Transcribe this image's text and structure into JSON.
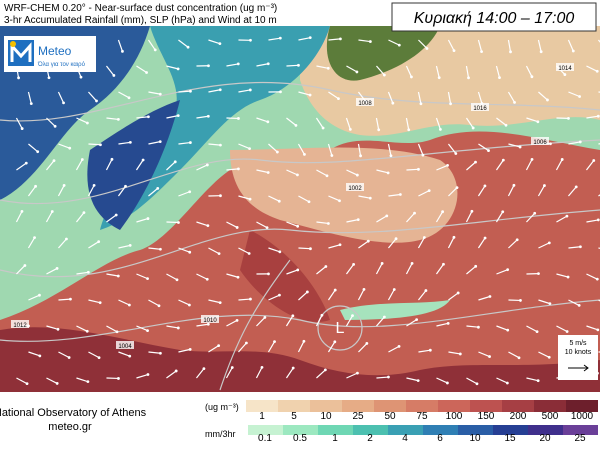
{
  "header": {
    "line1": "WRF-CHEM 0.20° - Near-surface dust concentration (ug m⁻³)",
    "line2": "3-hr Accumulated Rainfall (mm), SLP (hPa) and Wind at 10 m",
    "time": "Κυριακή 14:00 – 17:00"
  },
  "logo": {
    "name": "Meteo",
    "tagline": "Όλα για τον καιρό"
  },
  "map": {
    "low_label": "L",
    "isobars": [
      "1014",
      "1016",
      "1008",
      "1002",
      "1006",
      "1012",
      "1010",
      "1004"
    ],
    "wind_ref": [
      "5 m/s",
      "10 knots"
    ]
  },
  "footer": {
    "org": "National Observatory of Athens",
    "site": "meteo.gr"
  },
  "legend": {
    "dust_unit": "(ug m⁻³)",
    "dust_levels": [
      1,
      5,
      10,
      25,
      50,
      75,
      100,
      150,
      200,
      500,
      1000
    ],
    "dust_colors": [
      "#f6e4c8",
      "#f0d2ae",
      "#ebc09a",
      "#e6ac86",
      "#de9474",
      "#d67c66",
      "#cc665a",
      "#bd5250",
      "#a63f44",
      "#8a2d37",
      "#6d1f2c"
    ],
    "rain_unit": "mm/3hr",
    "rain_levels": [
      0.1,
      0.5,
      1,
      2,
      4,
      6,
      10,
      15,
      20,
      25
    ],
    "rain_colors": [
      "#c6f2d2",
      "#9ce8c0",
      "#6fd7b4",
      "#4cc0b0",
      "#3aa0b4",
      "#2f7fb4",
      "#2a5ea6",
      "#263f94",
      "#3f2f8c",
      "#6a3f98"
    ]
  }
}
